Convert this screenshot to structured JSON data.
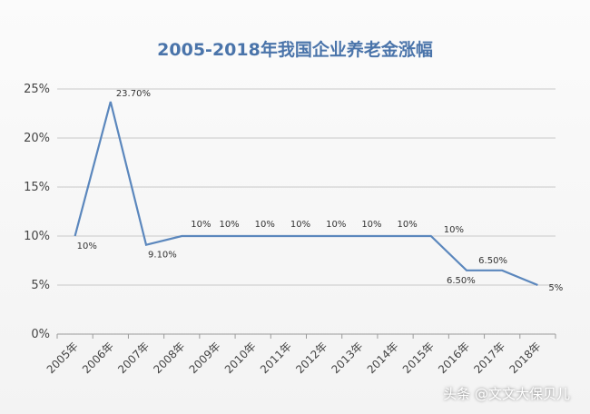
{
  "chart_data": {
    "type": "line",
    "title": "2005-2018年我国企业养老金涨幅",
    "xlabel": "",
    "ylabel": "",
    "categories": [
      "2005年",
      "2006年",
      "2007年",
      "2008年",
      "2009年",
      "2010年",
      "2011年",
      "2012年",
      "2013年",
      "2014年",
      "2015年",
      "2016年",
      "2017年",
      "2018年"
    ],
    "series": [
      {
        "values": [
          10,
          23.7,
          9.1,
          10,
          10,
          10,
          10,
          10,
          10,
          10,
          10,
          6.5,
          6.5,
          5
        ]
      }
    ],
    "data_labels": [
      "10%",
      "23.70%",
      "9.10%",
      "10%",
      "10%",
      "10%",
      "10%",
      "10%",
      "10%",
      "10%",
      "10%",
      "6.50%",
      "6.50%",
      "5%"
    ],
    "yticks": [
      "0%",
      "5%",
      "10%",
      "15%",
      "20%",
      "25%"
    ],
    "ylim": [
      0,
      25
    ],
    "grid": true,
    "legend": "none",
    "line_color": "#5b87bd"
  },
  "watermark": "头条 @文文大保贝儿"
}
